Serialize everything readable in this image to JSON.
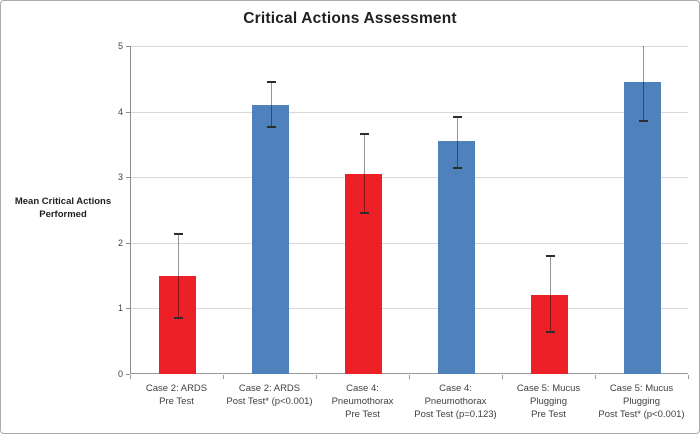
{
  "title": "Critical Actions Assessment",
  "chart_data": {
    "type": "bar",
    "title": "Critical Actions Assessment",
    "xlabel": "",
    "ylabel": "Mean Critical Actions\nPerformed",
    "ylim": [
      0,
      5
    ],
    "yticks": [
      0,
      1,
      2,
      3,
      4,
      5
    ],
    "grid": "horizontal gridlines at each integer",
    "legend": "none",
    "categories": [
      "Case 2:  ARDS\nPre Test",
      "Case 2:  ARDS\nPost Test* (p<0.001)",
      "Case 4:\nPneumothorax\nPre Test",
      "Case 4:\nPneumothorax\nPost Test (p=0.123)",
      "Case 5:  Mucus\nPlugging\nPre Test",
      "Case 5:  Mucus\nPlugging\nPost Test* (p<0.001)"
    ],
    "values": [
      1.5,
      4.1,
      3.05,
      3.55,
      1.2,
      4.45
    ],
    "bar_colors": [
      "#ED1F27",
      "#4F81BD",
      "#ED1F27",
      "#4F81BD",
      "#ED1F27",
      "#4F81BD"
    ],
    "error_bars": [
      {
        "low": 0.85,
        "high": 2.13
      },
      {
        "low": 3.77,
        "high": 4.45
      },
      {
        "low": 2.45,
        "high": 3.66
      },
      {
        "low": 3.14,
        "high": 3.92
      },
      {
        "low": 0.64,
        "high": 1.8
      },
      {
        "low": 3.86,
        "high": 5.0,
        "high_cap_hidden": true
      }
    ],
    "colors": {
      "pre_test_bar": "#ED1F27",
      "post_test_bar": "#4F81BD",
      "gridline": "#D9D9D9",
      "axis": "#8C8C8C",
      "error_cap": "#2D2D2D",
      "text": "#404040"
    }
  }
}
